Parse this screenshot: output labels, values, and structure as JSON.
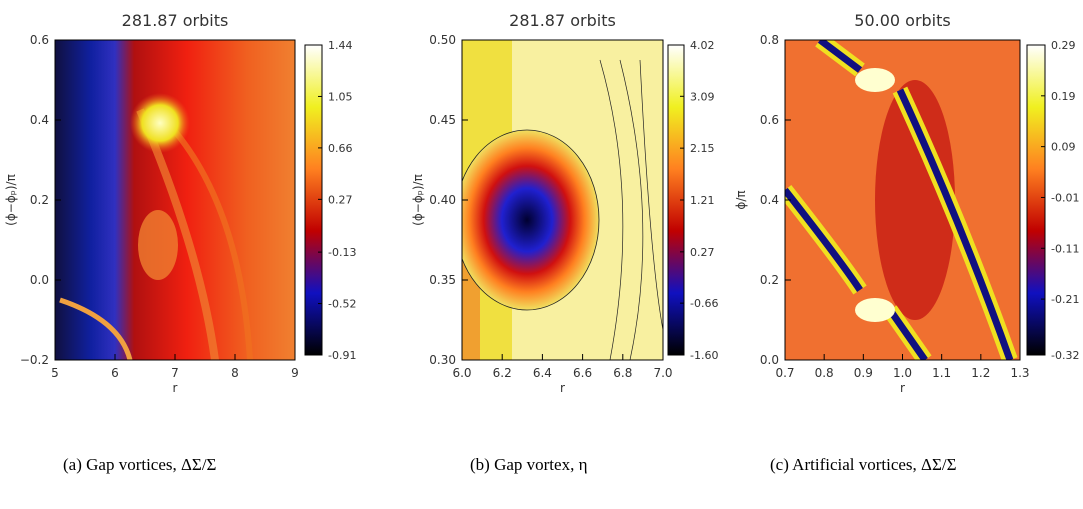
{
  "chart_data": [
    {
      "type": "heatmap",
      "title": "281.87 orbits",
      "x_label": "r",
      "y_label": "(ϕ−ϕₚ)/π",
      "xlim": [
        5,
        9
      ],
      "xticks": [
        5,
        6,
        7,
        8,
        9
      ],
      "ylim": [
        -0.2,
        0.6
      ],
      "yticks": [
        {
          "value": -0.2,
          "label": "−0.2"
        },
        {
          "value": 0,
          "label": "0.0"
        },
        0.2,
        0.4,
        0.6
      ],
      "clim": [
        -0.91,
        1.44
      ],
      "cticks": [
        -0.91,
        -0.52,
        -0.13,
        0.27,
        0.66,
        1.05,
        1.44
      ],
      "caption": "(a) Gap vortices, ΔΣ/Σ"
    },
    {
      "type": "heatmap",
      "title": "281.87 orbits",
      "x_label": "r",
      "y_label": "(ϕ−ϕₚ)/π",
      "xlim": [
        6,
        7
      ],
      "xticks": [
        {
          "value": 6,
          "label": "6.0"
        },
        6.2,
        6.4,
        6.6,
        6.8,
        {
          "value": 7,
          "label": "7.0"
        }
      ],
      "ylim": [
        0.3,
        0.5
      ],
      "yticks": [
        {
          "value": 0.3,
          "label": "0.30"
        },
        0.35,
        {
          "value": 0.4,
          "label": "0.40"
        },
        0.45,
        {
          "value": 0.5,
          "label": "0.50"
        }
      ],
      "clim": [
        -1.6,
        4.02
      ],
      "cticks": [
        {
          "value": -1.6,
          "label": "-1.60"
        },
        -0.66,
        0.27,
        1.21,
        2.15,
        3.09,
        4.02
      ],
      "caption": "(b) Gap vortex, η"
    },
    {
      "type": "heatmap",
      "title": "50.00 orbits",
      "x_label": "r",
      "y_label": "ϕ/π",
      "xlim": [
        0.7,
        1.3
      ],
      "xticks": [
        0.7,
        0.8,
        0.9,
        {
          "value": 1,
          "label": "1.0"
        },
        1.1,
        1.2,
        1.3
      ],
      "ylim": [
        0,
        0.8
      ],
      "yticks": [
        {
          "value": 0,
          "label": "0.0"
        },
        0.2,
        0.4,
        0.6,
        0.8
      ],
      "clim": [
        -0.32,
        0.29
      ],
      "cticks": [
        -0.32,
        -0.21,
        -0.11,
        -0.01,
        0.09,
        0.19,
        0.29
      ],
      "caption": "(c) Artificial vortices, ΔΣ/Σ"
    }
  ]
}
